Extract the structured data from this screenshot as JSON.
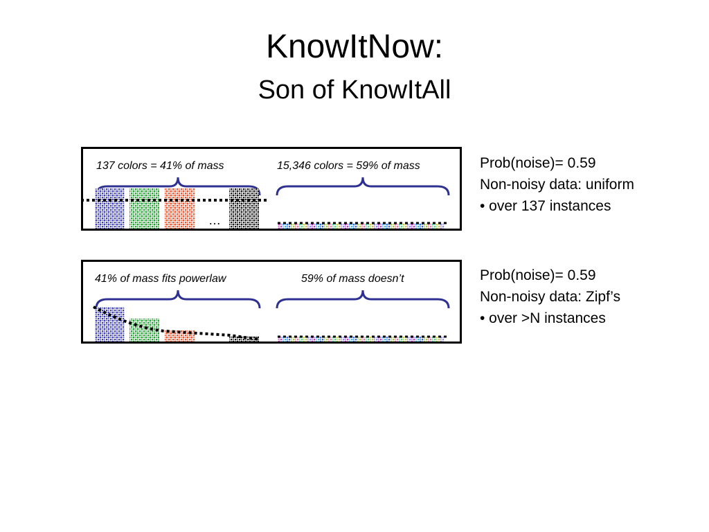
{
  "title": "KnowItNow:",
  "subtitle": "Son of KnowItAll",
  "colors": {
    "brace": "#2E3192",
    "bars": [
      "#3b3bb3",
      "#1e9e2e",
      "#e8502a",
      "#111111"
    ],
    "tail": [
      "#cc33cc",
      "#33bbee",
      "#3366ff",
      "#99cc33",
      "#ff66aa",
      "#44dd99",
      "#cccc33",
      "#8888ff"
    ]
  },
  "panels": [
    {
      "left_label": "137 colors = 41% of mass",
      "right_label": "15,346 colors = 59% of mass",
      "ellipsis": "…",
      "distribution": "uniform",
      "side": [
        "Prob(noise)= 0.59",
        "Non-noisy data: uniform",
        "• over 137 instances"
      ]
    },
    {
      "left_label": "41% of mass fits powerlaw",
      "right_label": "59% of mass doesn’t",
      "distribution": "zipf",
      "side": [
        "Prob(noise)= 0.59",
        "Non-noisy data: Zipf’s",
        "• over >N instances"
      ]
    }
  ]
}
